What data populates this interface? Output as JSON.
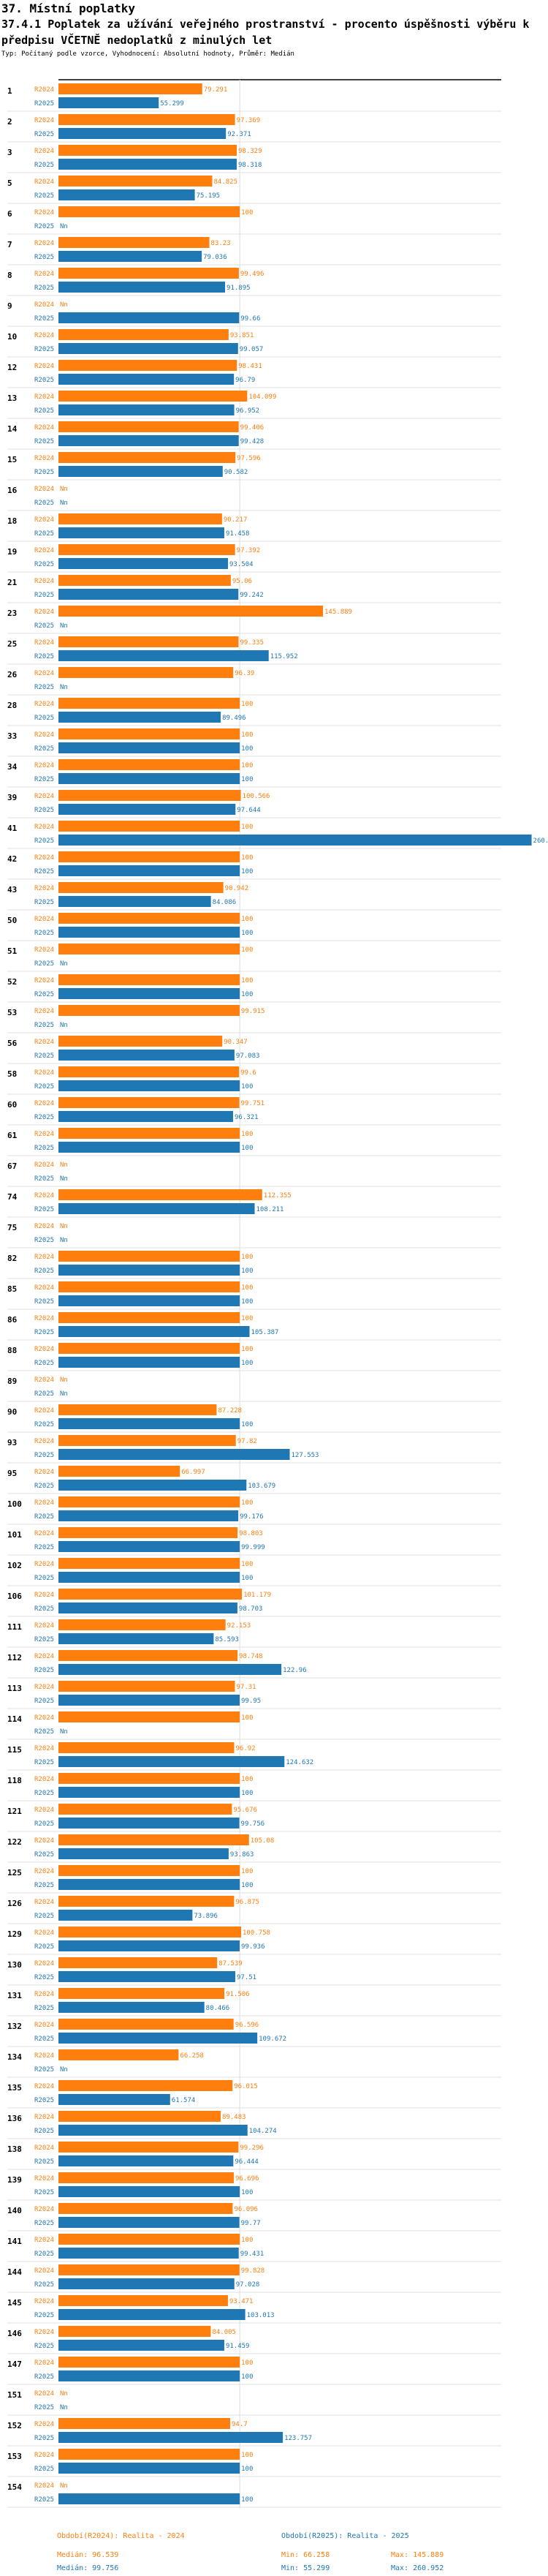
{
  "header": {
    "section_title": "37. Místní poplatky",
    "report_title": "37.4.1 Poplatek za užívání veřejného prostranství - procento úspěšnosti výběru k předpisu VČETNĚ nedoplatků z minulých let",
    "subtitle": "Typ: Počítaný podle vzorce, Vyhodnocení: Absolutní hodnoty, Průměr: Medián"
  },
  "colors": {
    "y2024": "#ff7f0e",
    "y2025": "#1f77b4",
    "axis": "#000000",
    "grid": "#dddddd"
  },
  "legend": {
    "series_2024_label": "Období(R2024): Realita - 2024",
    "series_2025_label": "Období(R2025): Realita - 2025",
    "median_2024": "Medián: 96.539",
    "min_2024": "Min: 66.258",
    "max_2024": "Max: 145.889",
    "median_2025": "Medián: 99.756",
    "min_2025": "Min: 55.299",
    "max_2025": "Max: 260.952"
  },
  "chart_data": {
    "type": "bar",
    "orientation": "horizontal",
    "x_range": [
      0,
      270
    ],
    "series": [
      {
        "name": "R2024",
        "color": "#ff7f0e"
      },
      {
        "name": "R2025",
        "color": "#1f77b4"
      }
    ],
    "categories": [
      {
        "id": "1",
        "r2024": 79.291,
        "r2025": 55.299
      },
      {
        "id": "2",
        "r2024": 97.369,
        "r2025": 92.371
      },
      {
        "id": "3",
        "r2024": 98.329,
        "r2025": 98.318
      },
      {
        "id": "5",
        "r2024": 84.825,
        "r2025": 75.195
      },
      {
        "id": "6",
        "r2024": 100,
        "r2025": null
      },
      {
        "id": "7",
        "r2024": 83.23,
        "r2025": 79.036
      },
      {
        "id": "8",
        "r2024": 99.496,
        "r2025": 91.895
      },
      {
        "id": "9",
        "r2024": null,
        "r2025": 99.66
      },
      {
        "id": "10",
        "r2024": 93.851,
        "r2025": 99.057
      },
      {
        "id": "12",
        "r2024": 98.431,
        "r2025": 96.79
      },
      {
        "id": "13",
        "r2024": 104.099,
        "r2025": 96.952
      },
      {
        "id": "14",
        "r2024": 99.406,
        "r2025": 99.428
      },
      {
        "id": "15",
        "r2024": 97.596,
        "r2025": 90.582
      },
      {
        "id": "16",
        "r2024": null,
        "r2025": null
      },
      {
        "id": "18",
        "r2024": 90.217,
        "r2025": 91.458
      },
      {
        "id": "19",
        "r2024": 97.392,
        "r2025": 93.504
      },
      {
        "id": "21",
        "r2024": 95.06,
        "r2025": 99.242
      },
      {
        "id": "23",
        "r2024": 145.889,
        "r2025": null
      },
      {
        "id": "25",
        "r2024": 99.335,
        "r2025": 115.952
      },
      {
        "id": "26",
        "r2024": 96.39,
        "r2025": null
      },
      {
        "id": "28",
        "r2024": 100,
        "r2025": 89.496
      },
      {
        "id": "33",
        "r2024": 100,
        "r2025": 100
      },
      {
        "id": "34",
        "r2024": 100,
        "r2025": 100
      },
      {
        "id": "39",
        "r2024": 100.566,
        "r2025": 97.644
      },
      {
        "id": "41",
        "r2024": 100,
        "r2025": 260.952
      },
      {
        "id": "42",
        "r2024": 100,
        "r2025": 100
      },
      {
        "id": "43",
        "r2024": 90.942,
        "r2025": 84.086
      },
      {
        "id": "50",
        "r2024": 100,
        "r2025": 100
      },
      {
        "id": "51",
        "r2024": 100,
        "r2025": null
      },
      {
        "id": "52",
        "r2024": 100,
        "r2025": 100
      },
      {
        "id": "53",
        "r2024": 99.915,
        "r2025": null
      },
      {
        "id": "56",
        "r2024": 90.347,
        "r2025": 97.083
      },
      {
        "id": "58",
        "r2024": 99.6,
        "r2025": 100
      },
      {
        "id": "60",
        "r2024": 99.751,
        "r2025": 96.321
      },
      {
        "id": "61",
        "r2024": 100,
        "r2025": 100
      },
      {
        "id": "67",
        "r2024": null,
        "r2025": null
      },
      {
        "id": "74",
        "r2024": 112.355,
        "r2025": 108.211
      },
      {
        "id": "75",
        "r2024": null,
        "r2025": null
      },
      {
        "id": "82",
        "r2024": 100,
        "r2025": 100
      },
      {
        "id": "85",
        "r2024": 100,
        "r2025": 100
      },
      {
        "id": "86",
        "r2024": 100,
        "r2025": 105.387
      },
      {
        "id": "88",
        "r2024": 100,
        "r2025": 100
      },
      {
        "id": "89",
        "r2024": null,
        "r2025": null
      },
      {
        "id": "90",
        "r2024": 87.228,
        "r2025": 100
      },
      {
        "id": "93",
        "r2024": 97.82,
        "r2025": 127.553
      },
      {
        "id": "95",
        "r2024": 66.997,
        "r2025": 103.679
      },
      {
        "id": "100",
        "r2024": 100,
        "r2025": 99.176
      },
      {
        "id": "101",
        "r2024": 98.803,
        "r2025": 99.999
      },
      {
        "id": "102",
        "r2024": 100,
        "r2025": 100
      },
      {
        "id": "106",
        "r2024": 101.179,
        "r2025": 98.703
      },
      {
        "id": "111",
        "r2024": 92.153,
        "r2025": 85.593
      },
      {
        "id": "112",
        "r2024": 98.748,
        "r2025": 122.96
      },
      {
        "id": "113",
        "r2024": 97.31,
        "r2025": 99.95
      },
      {
        "id": "114",
        "r2024": 100,
        "r2025": null
      },
      {
        "id": "115",
        "r2024": 96.92,
        "r2025": 124.632
      },
      {
        "id": "118",
        "r2024": 100,
        "r2025": 100
      },
      {
        "id": "121",
        "r2024": 95.676,
        "r2025": 99.756
      },
      {
        "id": "122",
        "r2024": 105.08,
        "r2025": 93.863
      },
      {
        "id": "125",
        "r2024": 100,
        "r2025": 100
      },
      {
        "id": "126",
        "r2024": 96.875,
        "r2025": 73.896
      },
      {
        "id": "129",
        "r2024": 100.758,
        "r2025": 99.936
      },
      {
        "id": "130",
        "r2024": 87.539,
        "r2025": 97.51
      },
      {
        "id": "131",
        "r2024": 91.506,
        "r2025": 80.466
      },
      {
        "id": "132",
        "r2024": 96.596,
        "r2025": 109.672
      },
      {
        "id": "134",
        "r2024": 66.258,
        "r2025": null
      },
      {
        "id": "135",
        "r2024": 96.015,
        "r2025": 61.574
      },
      {
        "id": "136",
        "r2024": 89.483,
        "r2025": 104.274
      },
      {
        "id": "138",
        "r2024": 99.296,
        "r2025": 96.444
      },
      {
        "id": "139",
        "r2024": 96.696,
        "r2025": 100
      },
      {
        "id": "140",
        "r2024": 96.096,
        "r2025": 99.77
      },
      {
        "id": "141",
        "r2024": 100,
        "r2025": 99.431
      },
      {
        "id": "144",
        "r2024": 99.828,
        "r2025": 97.028
      },
      {
        "id": "145",
        "r2024": 93.471,
        "r2025": 103.013
      },
      {
        "id": "146",
        "r2024": 84.005,
        "r2025": 91.459
      },
      {
        "id": "147",
        "r2024": 100,
        "r2025": 100
      },
      {
        "id": "151",
        "r2024": null,
        "r2025": null
      },
      {
        "id": "152",
        "r2024": 94.7,
        "r2025": 123.757
      },
      {
        "id": "153",
        "r2024": 100,
        "r2025": 100
      },
      {
        "id": "154",
        "r2024": null,
        "r2025": 100
      }
    ]
  }
}
